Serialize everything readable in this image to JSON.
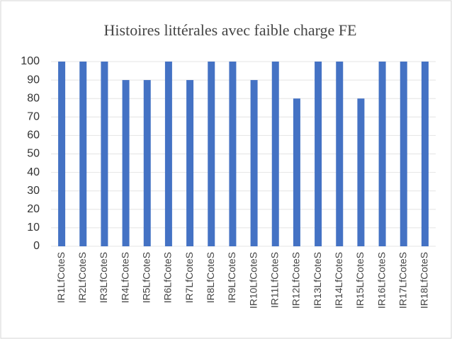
{
  "chart_data": {
    "type": "bar",
    "title": "Histoires littérales avec faible charge FE",
    "categories": [
      "IR1LfCoteS",
      "IR2LfCoteS",
      "IR3LfCoteS",
      "IR4LfCoteS",
      "IR5LfCoteS",
      "IR6LfCoteS",
      "IR7LfCoteS",
      "IR8LfCoteS",
      "IR9LfCoteS",
      "IR10LfCoteS",
      "IR11LfCoteS",
      "IR12LfCoteS",
      "IR13LfCoteS",
      "IR14LfCoteS",
      "IR15LfCoteS",
      "IR16LfCoteS",
      "IR17LfCoteS",
      "IR18LfCoteS"
    ],
    "values": [
      100,
      100,
      100,
      90,
      90,
      100,
      90,
      100,
      100,
      90,
      100,
      80,
      100,
      100,
      80,
      100,
      100,
      100
    ],
    "color": "#4472c4",
    "ylim": [
      0,
      100
    ],
    "yticks": [
      0,
      10,
      20,
      30,
      40,
      50,
      60,
      70,
      80,
      90,
      100
    ],
    "grid": true
  }
}
